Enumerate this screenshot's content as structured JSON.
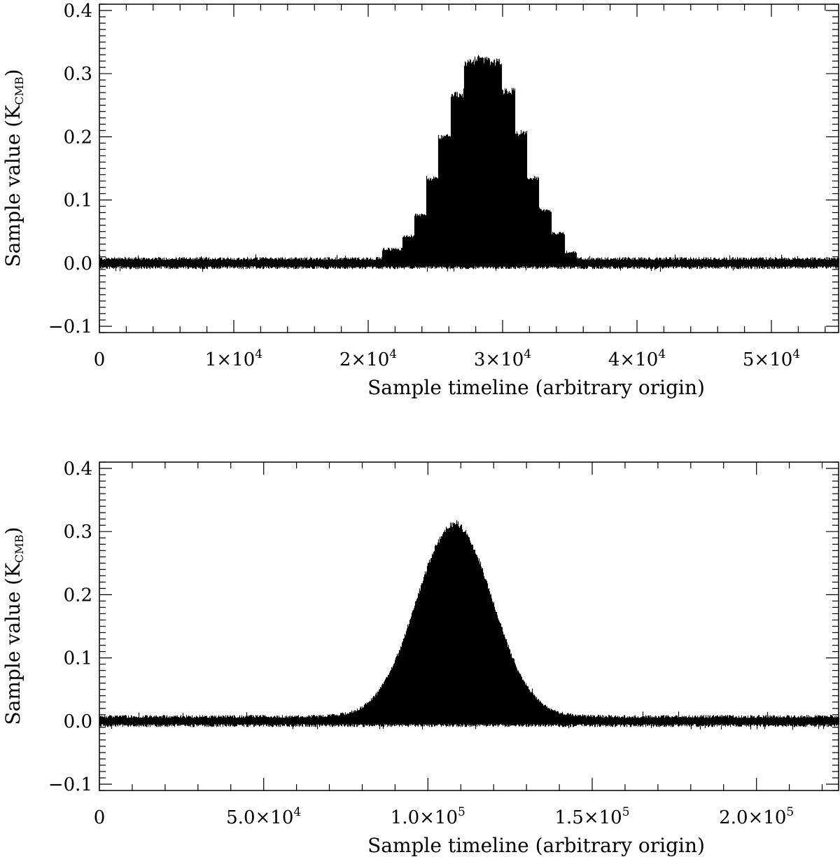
{
  "colors": {
    "trace": "#000000",
    "axes": "#000000",
    "background": "#ffffff"
  },
  "chart_data": [
    {
      "type": "line",
      "title": "",
      "xlabel": "Sample timeline (arbitrary origin)",
      "ylabel": "Sample value (K",
      "ylabel_sub": "CMB",
      "ylabel_close": ")",
      "xlim": [
        0,
        55000
      ],
      "ylim": [
        -0.11,
        0.41
      ],
      "grid": false,
      "legend": "none",
      "xticks": [
        {
          "value": 0,
          "mantissa": "0",
          "exponent": ""
        },
        {
          "value": 10000,
          "mantissa": "1×10",
          "exponent": "4"
        },
        {
          "value": 20000,
          "mantissa": "2×10",
          "exponent": "4"
        },
        {
          "value": 30000,
          "mantissa": "3×10",
          "exponent": "4"
        },
        {
          "value": 40000,
          "mantissa": "4×10",
          "exponent": "4"
        },
        {
          "value": 50000,
          "mantissa": "5×10",
          "exponent": "4"
        }
      ],
      "yticks": [
        {
          "value": -0.1,
          "label": "−0.1"
        },
        {
          "value": 0.0,
          "label": "0.0"
        },
        {
          "value": 0.1,
          "label": "0.1"
        },
        {
          "value": 0.2,
          "label": "0.2"
        },
        {
          "value": 0.3,
          "label": "0.3"
        },
        {
          "value": 0.4,
          "label": "0.4"
        }
      ],
      "signal": {
        "shape": "stepped",
        "peak_x": 28000,
        "peak_value": 0.31,
        "max_value": 0.33,
        "envelope_points": [
          [
            0,
            0.0
          ],
          [
            20500,
            0.0
          ],
          [
            21000,
            0.015
          ],
          [
            22500,
            0.035
          ],
          [
            23400,
            0.068
          ],
          [
            24300,
            0.125
          ],
          [
            25200,
            0.19
          ],
          [
            26100,
            0.255
          ],
          [
            27100,
            0.305
          ],
          [
            28000,
            0.31
          ],
          [
            29000,
            0.305
          ],
          [
            29900,
            0.26
          ],
          [
            30900,
            0.195
          ],
          [
            31800,
            0.125
          ],
          [
            32700,
            0.075
          ],
          [
            33600,
            0.04
          ],
          [
            34600,
            0.01
          ],
          [
            35500,
            0.0
          ],
          [
            55000,
            0.0
          ]
        ],
        "noise_halfwidth": 0.008,
        "min_value": -0.014
      }
    },
    {
      "type": "line",
      "title": "",
      "xlabel": "Sample timeline (arbitrary origin)",
      "ylabel": "Sample value (K",
      "ylabel_sub": "CMB",
      "ylabel_close": ")",
      "xlim": [
        0,
        225000
      ],
      "ylim": [
        -0.11,
        0.41
      ],
      "grid": false,
      "legend": "none",
      "xticks": [
        {
          "value": 0,
          "mantissa": "0",
          "exponent": ""
        },
        {
          "value": 50000,
          "mantissa": "5.0×10",
          "exponent": "4"
        },
        {
          "value": 100000,
          "mantissa": "1.0×10",
          "exponent": "5"
        },
        {
          "value": 150000,
          "mantissa": "1.5×10",
          "exponent": "5"
        },
        {
          "value": 200000,
          "mantissa": "2.0×10",
          "exponent": "5"
        }
      ],
      "yticks": [
        {
          "value": -0.1,
          "label": "−0.1"
        },
        {
          "value": 0.0,
          "label": "0.0"
        },
        {
          "value": 0.1,
          "label": "0.1"
        },
        {
          "value": 0.2,
          "label": "0.2"
        },
        {
          "value": 0.3,
          "label": "0.3"
        },
        {
          "value": 0.4,
          "label": "0.4"
        }
      ],
      "signal": {
        "shape": "gaussian",
        "peak_x": 108000,
        "peak_value": 0.3,
        "max_value": 0.315,
        "sigma_x": 11500,
        "noise_halfwidth": 0.008,
        "min_value": -0.014
      }
    }
  ]
}
